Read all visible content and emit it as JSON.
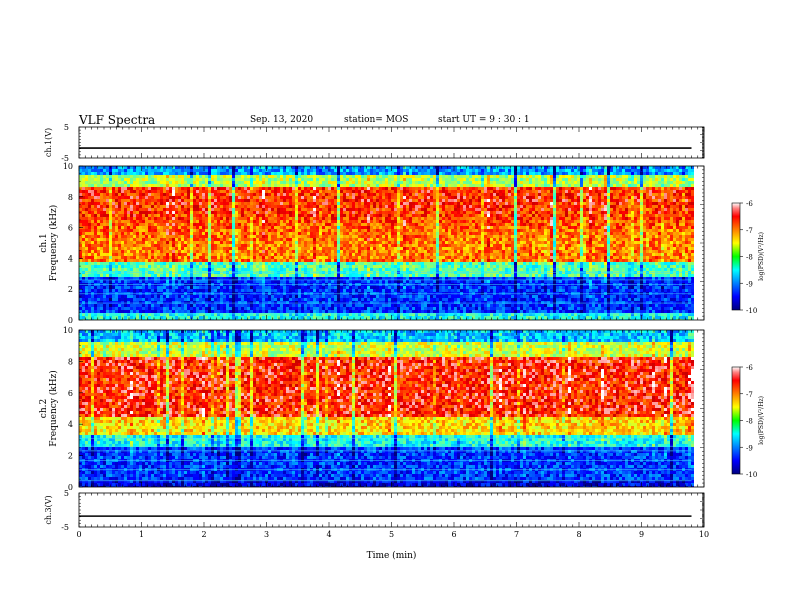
{
  "header": {
    "title": "VLF Spectra",
    "date": "Sep. 13, 2020",
    "station": "station= MOS",
    "start": "start  UT =   9 : 30 : 1"
  },
  "chart_data": [
    {
      "type": "line",
      "panel": "ch1-waveform",
      "ylabel": "ch.1(V)",
      "ylim": [
        -5,
        5
      ],
      "ytick_labels": [
        "5",
        "-5"
      ],
      "series": [
        {
          "x": [
            0,
            9.8
          ],
          "values": [
            -1.8,
            -1.8
          ]
        }
      ]
    },
    {
      "type": "heatmap",
      "panel": "ch1-spectrogram",
      "ylabel": "ch.1  Frequency (kHz)",
      "ylim": [
        0,
        10
      ],
      "yticks": [
        0,
        2,
        4,
        6,
        8,
        10
      ],
      "colorbar": {
        "label": "log(PSD)(V²/Hz)",
        "range": [
          -10,
          -6
        ],
        "ticks": [
          -6,
          -7,
          -8,
          -9,
          -10
        ]
      },
      "data_end_min": 9.8
    },
    {
      "type": "heatmap",
      "panel": "ch2-spectrogram",
      "ylabel": "ch.2  Frequency (kHz)",
      "ylim": [
        0,
        10
      ],
      "yticks": [
        0,
        2,
        4,
        6,
        8,
        10
      ],
      "colorbar": {
        "label": "log(PSD)(V²/Hz)",
        "range": [
          -10,
          -6
        ],
        "ticks": [
          -6,
          -7,
          -8,
          -9,
          -10
        ]
      },
      "data_end_min": 9.8
    },
    {
      "type": "line",
      "panel": "ch3-waveform",
      "ylabel": "ch.3(V)",
      "ylim": [
        -5,
        5
      ],
      "ytick_labels": [
        "5",
        "-5"
      ],
      "series": [
        {
          "x": [
            0,
            9.8
          ],
          "values": [
            -1.8,
            -1.8
          ]
        }
      ]
    }
  ],
  "xaxis": {
    "label": "Time  (min)",
    "xlim": [
      0,
      10
    ],
    "ticks": [
      "0",
      "1",
      "2",
      "3",
      "4",
      "5",
      "6",
      "7",
      "8",
      "9",
      "10"
    ]
  },
  "colors": {
    "jet_low": "#00007f",
    "jet_high": "#ff0000",
    "saturated": "#ffe0e0",
    "axis": "#000000"
  }
}
